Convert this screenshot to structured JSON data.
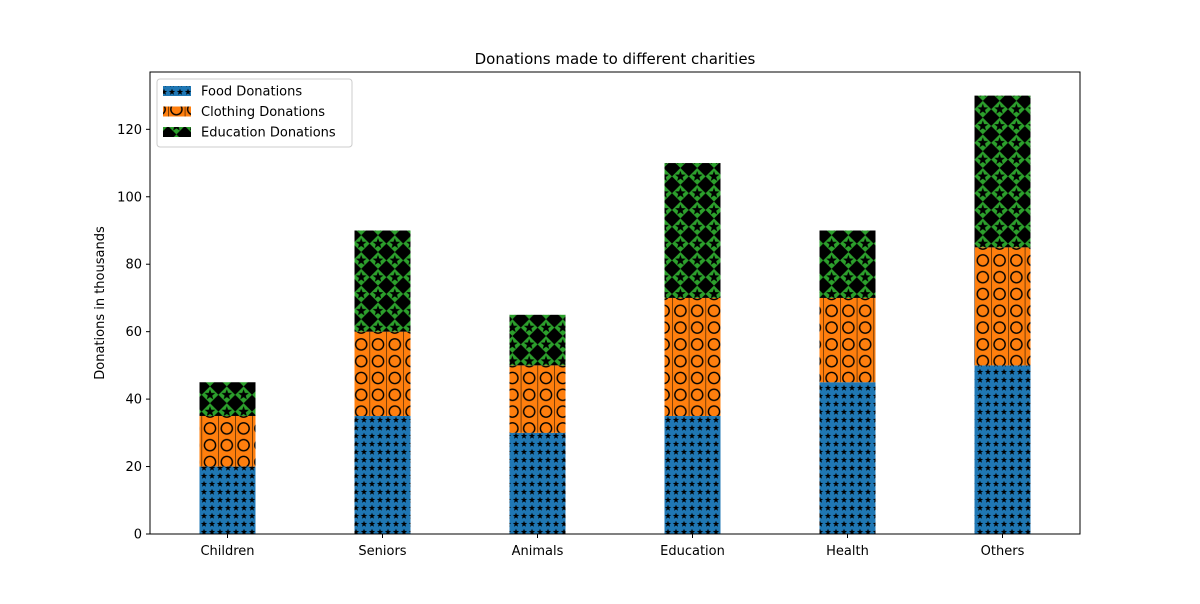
{
  "chart_data": {
    "type": "bar",
    "stacked": true,
    "title": "Donations made to different charities",
    "xlabel": "",
    "ylabel": "Donations in thousands",
    "categories": [
      "Children",
      "Seniors",
      "Animals",
      "Education",
      "Health",
      "Others"
    ],
    "series": [
      {
        "name": "Food Donations",
        "values": [
          20,
          35,
          30,
          35,
          45,
          50
        ],
        "color": "#1f77b4",
        "hatch": "stars"
      },
      {
        "name": "Clothing Donations",
        "values": [
          15,
          25,
          20,
          35,
          25,
          35
        ],
        "color": "#ff7f0e",
        "hatch": "circles"
      },
      {
        "name": "Education Donations",
        "values": [
          10,
          30,
          15,
          40,
          20,
          45
        ],
        "color": "#2ca02c",
        "hatch": "diamonds-stars"
      }
    ],
    "ylim": [
      0,
      137
    ],
    "yticks": [
      0,
      20,
      40,
      60,
      80,
      100,
      120
    ],
    "grid": false,
    "legend_position": "top-left"
  }
}
